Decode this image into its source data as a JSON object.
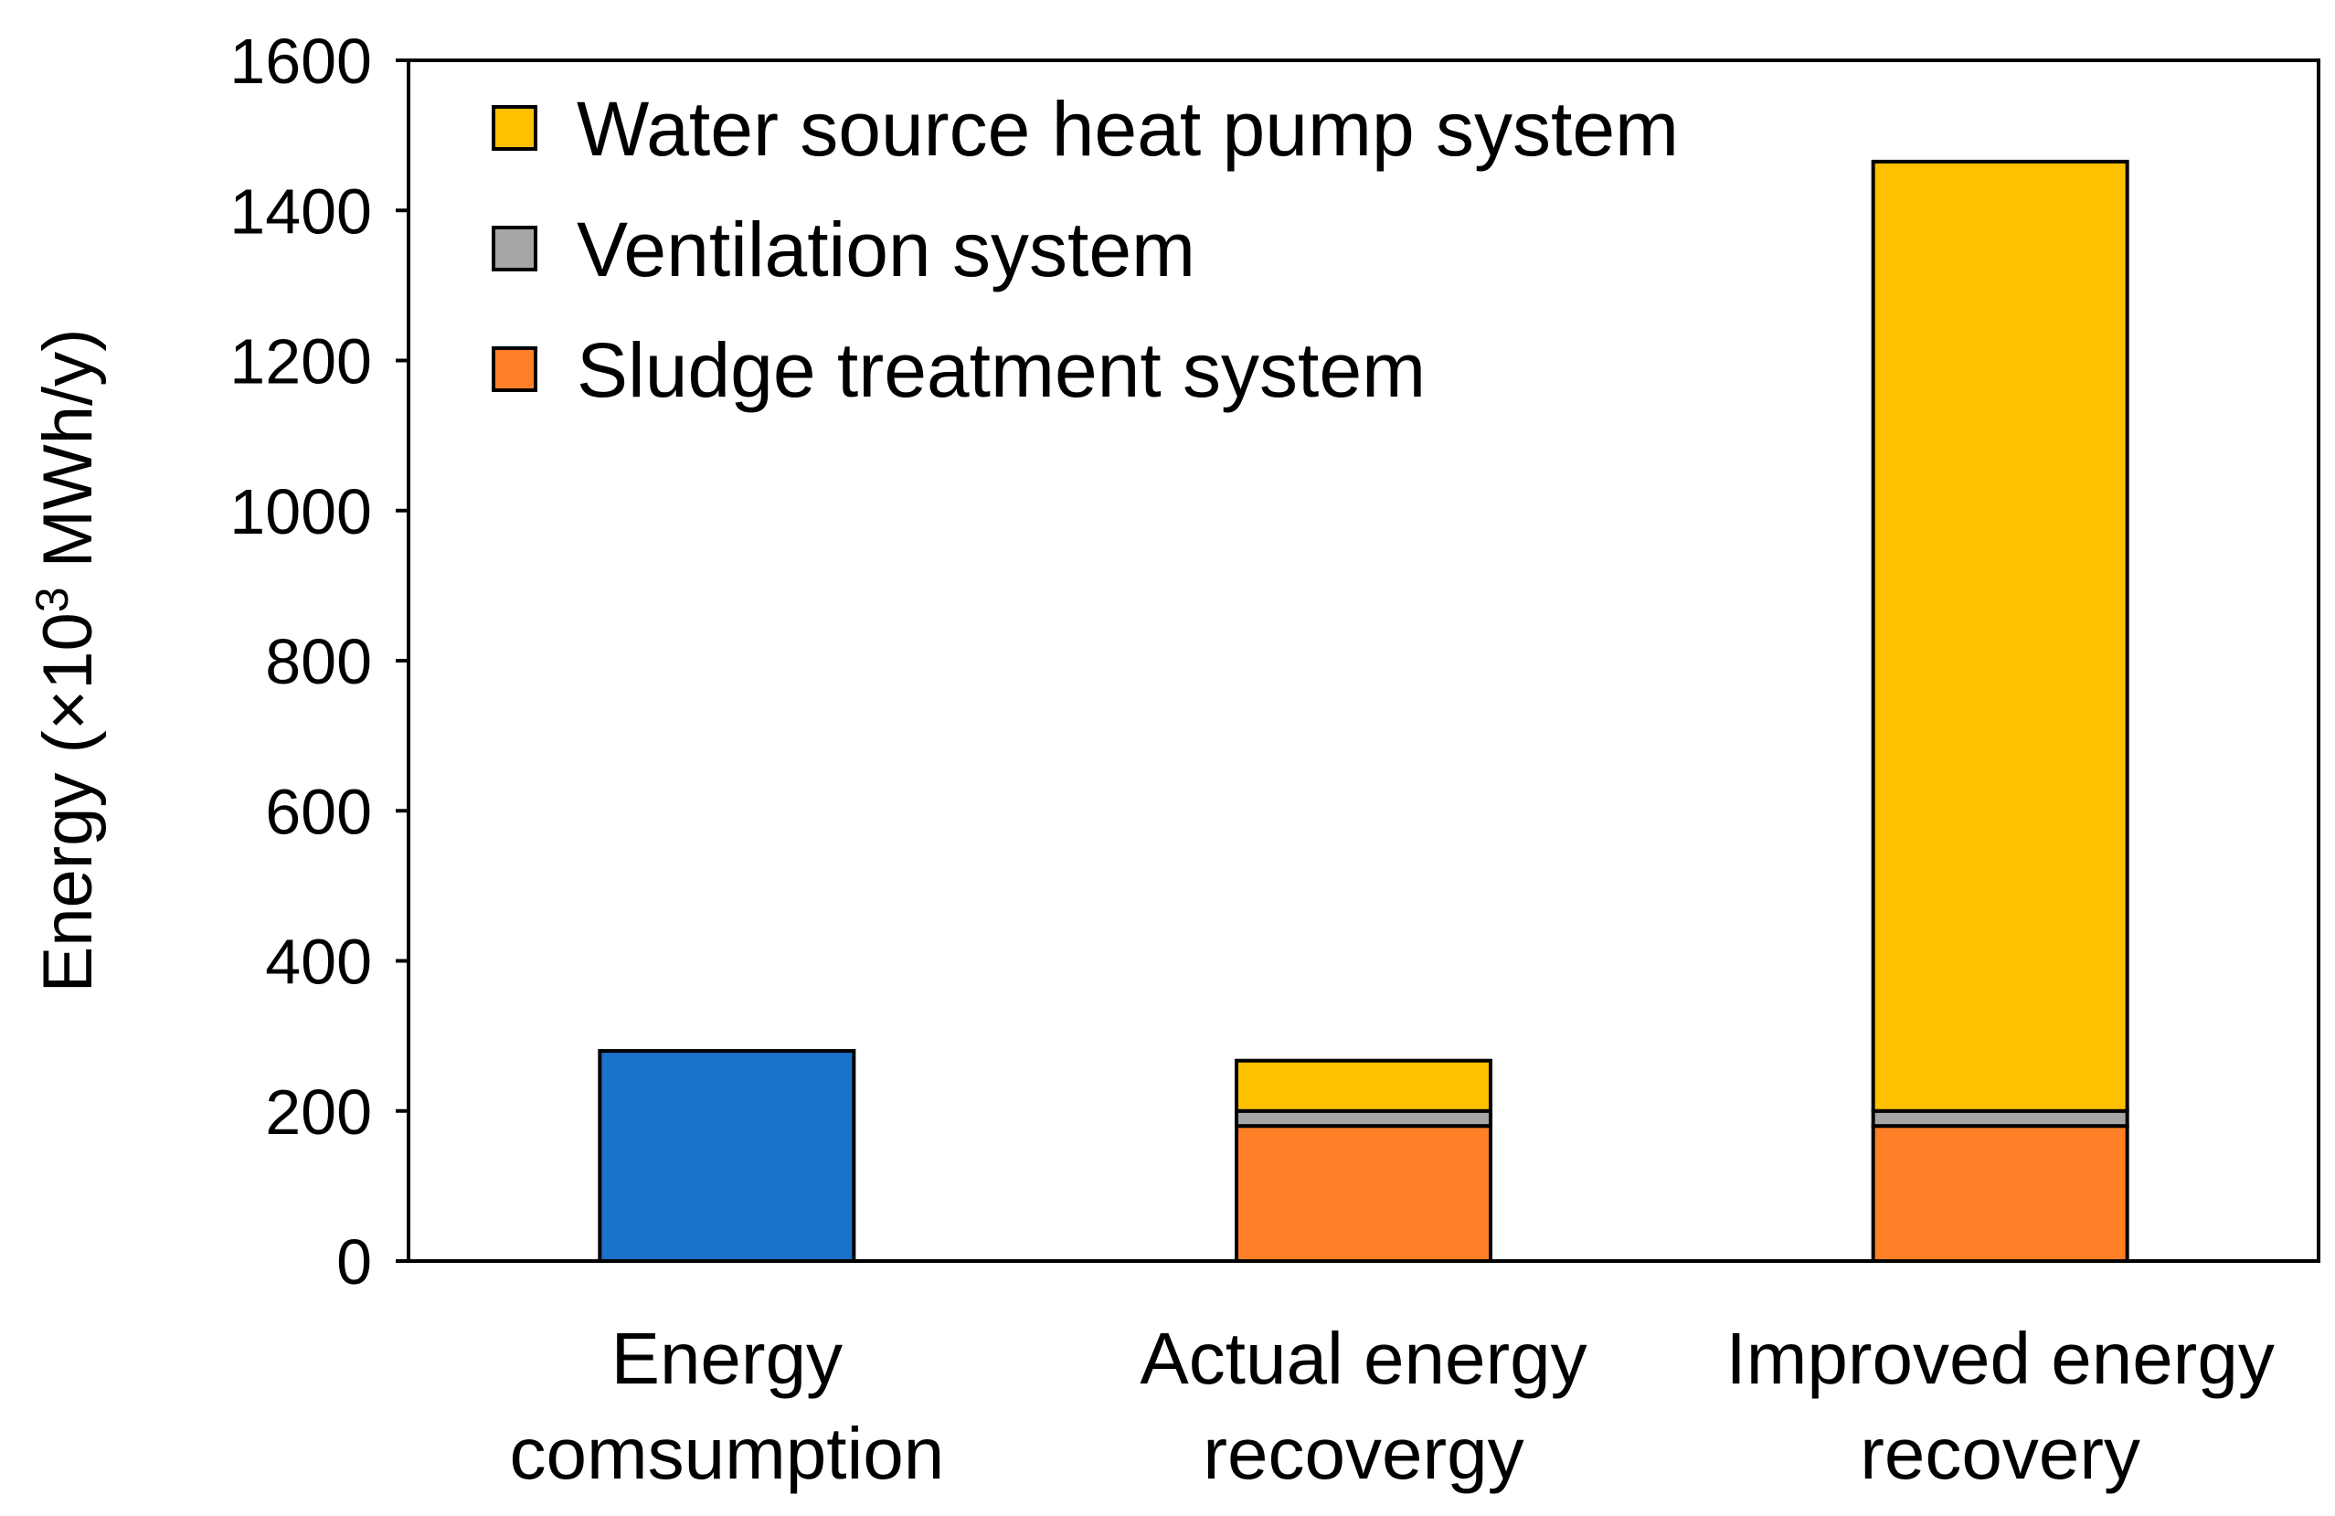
{
  "chart_data": {
    "type": "bar",
    "stacked": true,
    "title": "",
    "xlabel": "",
    "ylabel": {
      "prefix": "Energy (×10",
      "superscript": "3",
      "suffix": " MWh/y)"
    },
    "ylim": [
      0,
      1600
    ],
    "yticks": [
      0,
      200,
      400,
      600,
      800,
      1000,
      1200,
      1400,
      1600
    ],
    "grid": false,
    "legend_position": "top-left",
    "categories": [
      {
        "lines": [
          "Energy",
          "comsumption"
        ]
      },
      {
        "lines": [
          "Actual energy",
          "recovergy"
        ]
      },
      {
        "lines": [
          "Improved energy",
          "recovery"
        ]
      }
    ],
    "series": [
      {
        "name": "Energy consumption",
        "color": "#1a73c8",
        "in_legend": false,
        "values": [
          280,
          0,
          0
        ]
      },
      {
        "name": "Sludge treatment system",
        "color": "#ff7f27",
        "in_legend": true,
        "values": [
          0,
          180,
          180
        ]
      },
      {
        "name": "Ventilation system",
        "color": "#a6a6a6",
        "in_legend": true,
        "values": [
          0,
          20,
          20
        ]
      },
      {
        "name": "Water source heat pump system",
        "color": "#ffc000",
        "in_legend": true,
        "values": [
          0,
          67,
          1265
        ]
      }
    ],
    "legend_order": [
      "Water source heat pump system",
      "Ventilation system",
      "Sludge treatment system"
    ]
  }
}
